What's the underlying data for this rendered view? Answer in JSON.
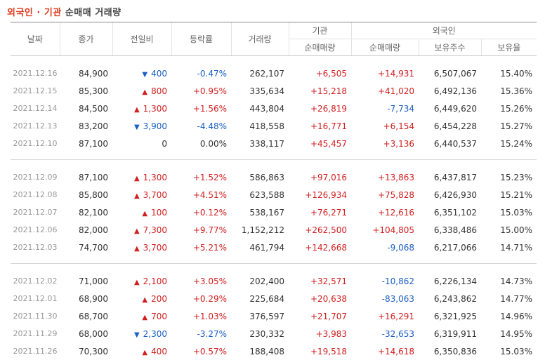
{
  "title": {
    "part1": "외국인 · 기관",
    "part2": "순매매 거래량"
  },
  "headers": {
    "date": "날짜",
    "close": "종가",
    "change": "전일비",
    "rate": "등락률",
    "volume": "거래량",
    "inst_group": "기관",
    "inst_net": "순매매량",
    "foreign_group": "외국인",
    "foreign_net": "순매매량",
    "foreign_hold": "보유주수",
    "foreign_ratio": "보유율"
  },
  "groups": [
    [
      {
        "date": "2021.12.16",
        "close": "84,900",
        "dir": "down",
        "change": "400",
        "rate": "-0.47%",
        "volume": "262,107",
        "inst": "+6,505",
        "foreign": "+14,931",
        "hold": "6,507,067",
        "ratio": "15.40%"
      },
      {
        "date": "2021.12.15",
        "close": "85,300",
        "dir": "up",
        "change": "800",
        "rate": "+0.95%",
        "volume": "335,634",
        "inst": "+15,218",
        "foreign": "+41,020",
        "hold": "6,492,136",
        "ratio": "15.36%"
      },
      {
        "date": "2021.12.14",
        "close": "84,500",
        "dir": "up",
        "change": "1,300",
        "rate": "+1.56%",
        "volume": "443,804",
        "inst": "+26,819",
        "foreign": "-7,734",
        "hold": "6,449,620",
        "ratio": "15.26%"
      },
      {
        "date": "2021.12.13",
        "close": "83,200",
        "dir": "down",
        "change": "3,900",
        "rate": "-4.48%",
        "volume": "418,558",
        "inst": "+16,771",
        "foreign": "+6,154",
        "hold": "6,454,228",
        "ratio": "15.27%"
      },
      {
        "date": "2021.12.10",
        "close": "87,100",
        "dir": "none",
        "change": "0",
        "rate": "0.00%",
        "volume": "338,117",
        "inst": "+45,457",
        "foreign": "+3,136",
        "hold": "6,440,537",
        "ratio": "15.24%"
      }
    ],
    [
      {
        "date": "2021.12.09",
        "close": "87,100",
        "dir": "up",
        "change": "1,300",
        "rate": "+1.52%",
        "volume": "586,863",
        "inst": "+97,016",
        "foreign": "+13,863",
        "hold": "6,437,817",
        "ratio": "15.23%"
      },
      {
        "date": "2021.12.08",
        "close": "85,800",
        "dir": "up",
        "change": "3,700",
        "rate": "+4.51%",
        "volume": "623,588",
        "inst": "+126,934",
        "foreign": "+75,828",
        "hold": "6,426,930",
        "ratio": "15.21%"
      },
      {
        "date": "2021.12.07",
        "close": "82,100",
        "dir": "up",
        "change": "100",
        "rate": "+0.12%",
        "volume": "538,167",
        "inst": "+76,271",
        "foreign": "+12,616",
        "hold": "6,351,102",
        "ratio": "15.03%"
      },
      {
        "date": "2021.12.06",
        "close": "82,000",
        "dir": "up",
        "change": "7,300",
        "rate": "+9.77%",
        "volume": "1,152,212",
        "inst": "+262,500",
        "foreign": "+104,805",
        "hold": "6,338,486",
        "ratio": "15.00%"
      },
      {
        "date": "2021.12.03",
        "close": "74,700",
        "dir": "up",
        "change": "3,700",
        "rate": "+5.21%",
        "volume": "461,794",
        "inst": "+142,668",
        "foreign": "-9,068",
        "hold": "6,217,066",
        "ratio": "14.71%"
      }
    ],
    [
      {
        "date": "2021.12.02",
        "close": "71,000",
        "dir": "up",
        "change": "2,100",
        "rate": "+3.05%",
        "volume": "202,400",
        "inst": "+32,571",
        "foreign": "-10,862",
        "hold": "6,226,134",
        "ratio": "14.73%"
      },
      {
        "date": "2021.12.01",
        "close": "68,900",
        "dir": "up",
        "change": "200",
        "rate": "+0.29%",
        "volume": "225,684",
        "inst": "+20,638",
        "foreign": "-83,063",
        "hold": "6,243,862",
        "ratio": "14.77%"
      },
      {
        "date": "2021.11.30",
        "close": "68,700",
        "dir": "up",
        "change": "700",
        "rate": "+1.03%",
        "volume": "376,597",
        "inst": "+21,707",
        "foreign": "+16,291",
        "hold": "6,321,925",
        "ratio": "14.96%"
      },
      {
        "date": "2021.11.29",
        "close": "68,000",
        "dir": "down",
        "change": "2,300",
        "rate": "-3.27%",
        "volume": "230,332",
        "inst": "+3,983",
        "foreign": "-32,653",
        "hold": "6,319,911",
        "ratio": "14.95%"
      },
      {
        "date": "2021.11.26",
        "close": "70,300",
        "dir": "up",
        "change": "400",
        "rate": "+0.57%",
        "volume": "188,408",
        "inst": "+19,518",
        "foreign": "+14,618",
        "hold": "6,350,836",
        "ratio": "15.03%"
      }
    ]
  ],
  "colors": {
    "up": "#d21f1f",
    "down": "#1a5fc4",
    "accent": "#e03a1e"
  },
  "icons": {
    "up": "triangle-up-icon",
    "down": "triangle-down-icon"
  }
}
